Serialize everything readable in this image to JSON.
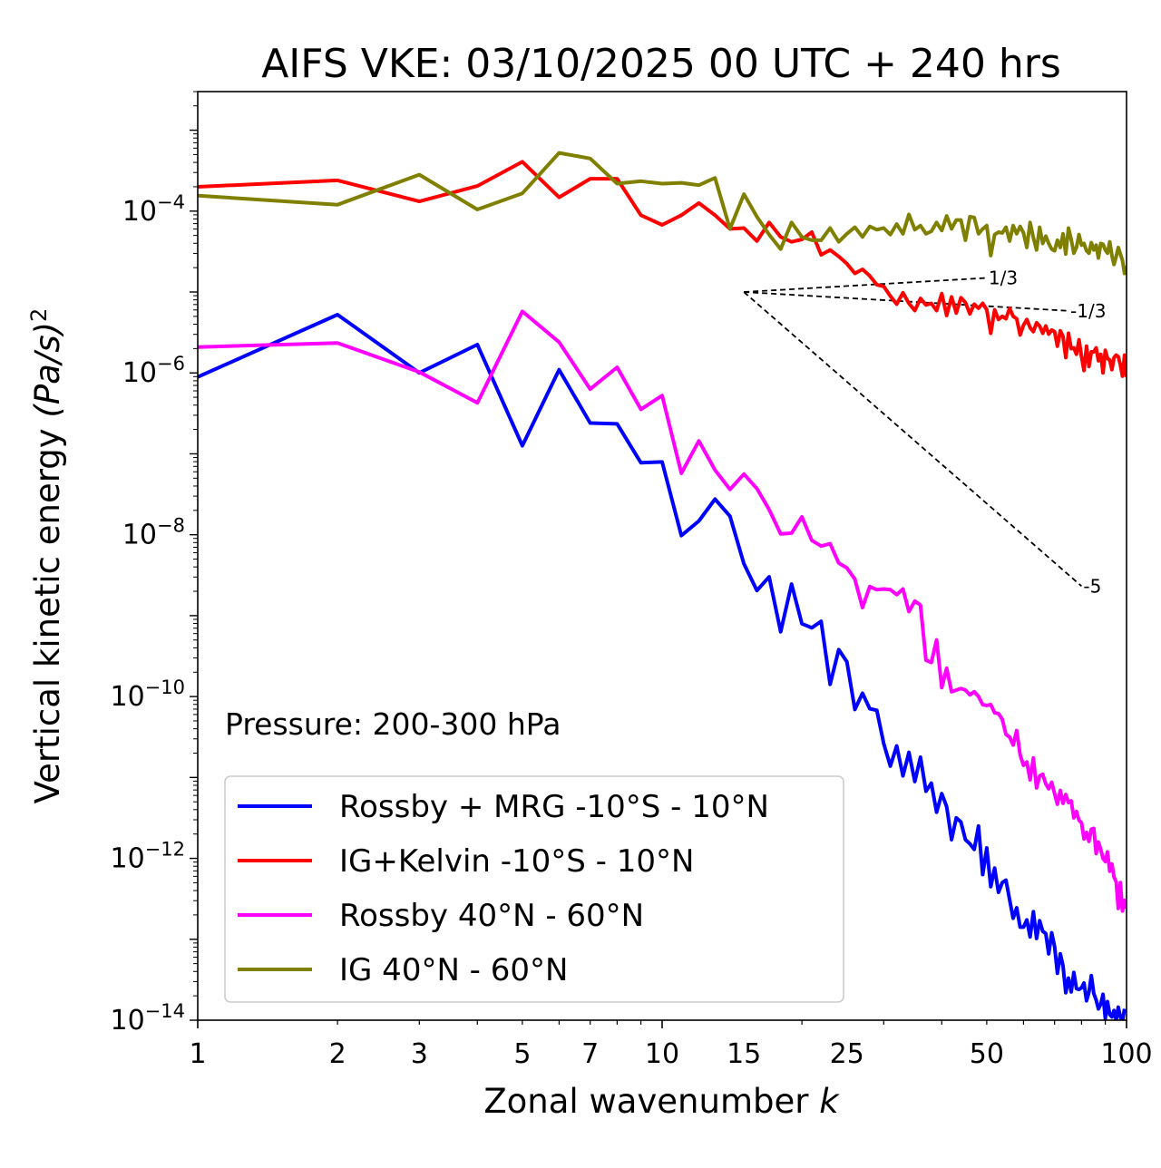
{
  "chart_data": {
    "type": "line",
    "title": "AIFS VKE: 03/10/2025 00 UTC + 240 hrs",
    "xlabel": "Zonal wavenumber",
    "xlabel_var": "k",
    "ylabel": "Vertical kinetic energy",
    "ylabel_units": "(Pa/s)",
    "ylabel_exp": "2",
    "x_scale": "log",
    "y_scale": "log",
    "xlim": [
      1,
      100
    ],
    "ylim": [
      1e-14,
      0.003
    ],
    "x_ticks": [
      {
        "v": 1,
        "label": "1"
      },
      {
        "v": 2,
        "label": "2"
      },
      {
        "v": 3,
        "label": "3"
      },
      {
        "v": 5,
        "label": "5"
      },
      {
        "v": 7,
        "label": "7"
      },
      {
        "v": 10,
        "label": "10"
      },
      {
        "v": 15,
        "label": "15"
      },
      {
        "v": 25,
        "label": "25"
      },
      {
        "v": 50,
        "label": "50"
      },
      {
        "v": 100,
        "label": "100"
      }
    ],
    "y_ticks": [
      {
        "exp": -4,
        "base": "10",
        "sup": "−4"
      },
      {
        "exp": -6,
        "base": "10",
        "sup": "−6"
      },
      {
        "exp": -8,
        "base": "10",
        "sup": "−8"
      },
      {
        "exp": -10,
        "base": "10",
        "sup": "−10"
      },
      {
        "exp": -12,
        "base": "10",
        "sup": "−12"
      },
      {
        "exp": -14,
        "base": "10",
        "sup": "−14"
      }
    ],
    "annotation": "Pressure: 200-300 hPa",
    "legend_position": "lower-left",
    "series": [
      {
        "name": "Rossby + MRG -10°S - 10°N",
        "color": "#0000ff",
        "log10_values": [
          -6.05,
          -5.28,
          -6,
          -5.65,
          -6.9,
          -5.96,
          -6.62,
          -6.63,
          -7.11,
          -7.1,
          -8.01,
          -7.83,
          -7.56,
          -7.77,
          -8.36,
          -8.69,
          -8.52,
          -9.2,
          -8.61,
          -9.1,
          -9.15,
          -9.07,
          -9.85,
          -9.42,
          -9.57,
          -10.16,
          -9.96,
          -10.15,
          -10.17,
          -10.58,
          -10.86,
          -10.61,
          -10.98,
          -10.69,
          -11.05,
          -10.75,
          -11.17,
          -11.07,
          -11.43,
          -11.2,
          -11.36,
          -11.77,
          -11.5,
          -11.55,
          -11.77,
          -11.82,
          -11.89,
          -11.6,
          -12.2,
          -11.87,
          -12.35,
          -12.12,
          -12.42,
          -12.3,
          -12.27,
          -12.51,
          -12.74,
          -12.61,
          -12.85,
          -12.85,
          -12.76,
          -12.97,
          -12.66,
          -12.99,
          -12.77,
          -12.9,
          -12.93,
          -13.18,
          -12.92,
          -13.09,
          -13.42,
          -13.18,
          -13.33,
          -13.66,
          -13.48,
          -13.65,
          -13.41,
          -13.61,
          -13.62,
          -13.6,
          -13.54,
          -13.76,
          -13.65,
          -13.45,
          -13.67,
          -13.75,
          -13.86,
          -13.8,
          -13.68,
          -13.98,
          -13.77,
          -13.93,
          -13.96,
          -13.88,
          -14,
          -13.84,
          -13.96,
          -14.01,
          -13.86
        ]
      },
      {
        "name": "IG+Kelvin -10°S - 10°N",
        "color": "#ff0000",
        "log10_values": [
          -3.7,
          -3.62,
          -3.88,
          -3.69,
          -3.39,
          -3.83,
          -3.6,
          -3.6,
          -4.05,
          -4.17,
          -4.05,
          -3.9,
          -4.05,
          -4.22,
          -4.21,
          -4.37,
          -4.14,
          -4.32,
          -4.38,
          -4.35,
          -4.26,
          -4.54,
          -4.48,
          -4.56,
          -4.65,
          -4.77,
          -4.72,
          -4.8,
          -4.91,
          -4.93,
          -5.05,
          -5.15,
          -5.01,
          -5.14,
          -5.23,
          -5.08,
          -5.16,
          -5.14,
          -5.23,
          -5.02,
          -5.29,
          -5.06,
          -5.26,
          -5.07,
          -5.13,
          -5.27,
          -5.15,
          -5.2,
          -5.14,
          -5.22,
          -5.51,
          -5.22,
          -5.34,
          -5.3,
          -5.33,
          -5.2,
          -5.3,
          -5.33,
          -5.53,
          -5.41,
          -5.34,
          -5.44,
          -5.49,
          -5.38,
          -5.42,
          -5.51,
          -5.42,
          -5.52,
          -5.47,
          -5.49,
          -5.67,
          -5.48,
          -5.55,
          -5.81,
          -5.51,
          -5.7,
          -5.69,
          -5.77,
          -5.59,
          -5.8,
          -5.97,
          -5.67,
          -5.92,
          -5.74,
          -5.74,
          -5.69,
          -5.85,
          -5.77,
          -6,
          -5.72,
          -5.82,
          -5.84,
          -5.96,
          -5.81,
          -5.78,
          -5.8,
          -5.9,
          -6.04,
          -5.78,
          -6.05
        ]
      },
      {
        "name": "Rossby 40°N - 60°N",
        "color": "#ff00ff",
        "log10_values": [
          -5.68,
          -5.63,
          -5.99,
          -6.37,
          -5.24,
          -5.62,
          -6.2,
          -5.93,
          -6.45,
          -6.28,
          -7.24,
          -6.84,
          -7.2,
          -7.44,
          -7.25,
          -7.43,
          -7.69,
          -7.99,
          -7.98,
          -7.78,
          -8.07,
          -8.14,
          -8.11,
          -8.35,
          -8.41,
          -8.55,
          -8.9,
          -8.64,
          -8.68,
          -8.67,
          -8.68,
          -8.74,
          -8.67,
          -8.95,
          -8.82,
          -8.87,
          -9.55,
          -9.58,
          -9.3,
          -9.89,
          -9.65,
          -9.94,
          -9.92,
          -9.9,
          -9.92,
          -9.98,
          -9.94,
          -10,
          -10.1,
          -10.11,
          -10.1,
          -10.2,
          -10.21,
          -10.28,
          -10.47,
          -10.5,
          -10.6,
          -10.42,
          -10.72,
          -10.85,
          -10.81,
          -11.03,
          -10.76,
          -11.13,
          -10.98,
          -10.96,
          -11.08,
          -11.14,
          -11.06,
          -11.2,
          -11.33,
          -11.16,
          -11.32,
          -11.21,
          -11.31,
          -11.29,
          -11.5,
          -11.42,
          -11.53,
          -11.56,
          -11.76,
          -11.68,
          -11.79,
          -11.64,
          -11.63,
          -11.94,
          -11.8,
          -11.89,
          -12,
          -12.04,
          -11.92,
          -12.16,
          -12.07,
          -12.23,
          -12.29,
          -12.62,
          -12.3,
          -12.65,
          -12.52,
          -12.62
        ]
      },
      {
        "name": "IG 40°N - 60°N",
        "color": "#808000",
        "log10_values": [
          -3.81,
          -3.92,
          -3.55,
          -3.98,
          -3.78,
          -3.28,
          -3.35,
          -3.66,
          -3.63,
          -3.66,
          -3.65,
          -3.68,
          -3.59,
          -4.22,
          -3.79,
          -4.07,
          -4.29,
          -4.47,
          -4.14,
          -4.32,
          -4.36,
          -4.36,
          -4.21,
          -4.38,
          -4.28,
          -4.2,
          -4.32,
          -4.19,
          -4.23,
          -4.21,
          -4.29,
          -4.16,
          -4.28,
          -4.04,
          -4.23,
          -4.18,
          -4.28,
          -4.25,
          -4.14,
          -4.24,
          -4.06,
          -4.22,
          -4.11,
          -4.11,
          -4.36,
          -4.07,
          -4.08,
          -4.28,
          -4.22,
          -4.18,
          -4.55,
          -4.29,
          -4.26,
          -4.27,
          -4.2,
          -4.37,
          -4.18,
          -4.28,
          -4.19,
          -4.27,
          -4.45,
          -4.14,
          -4.33,
          -4.48,
          -4.2,
          -4.4,
          -4.31,
          -4.4,
          -4.47,
          -4.49,
          -4.36,
          -4.45,
          -4.28,
          -4.53,
          -4.21,
          -4.35,
          -4.52,
          -4.45,
          -4.29,
          -4.42,
          -4.4,
          -4.49,
          -4.52,
          -4.39,
          -4.48,
          -4.42,
          -4.58,
          -4.4,
          -4.41,
          -4.48,
          -4.52,
          -4.38,
          -4.55,
          -4.66,
          -4.56,
          -4.45,
          -4.53,
          -4.61,
          -4.77,
          -4.68
        ]
      }
    ],
    "reference_slopes": [
      {
        "label": "1/3",
        "slope": 0.3333,
        "x0": 15,
        "x1": 50,
        "y0_log10": -5
      },
      {
        "label": "-1/3",
        "slope": -0.3333,
        "x0": 15,
        "x1": 75,
        "y0_log10": -5
      },
      {
        "label": "-5",
        "slope": -5,
        "x0": 15,
        "x1": 80,
        "y0_log10": -5
      }
    ]
  }
}
